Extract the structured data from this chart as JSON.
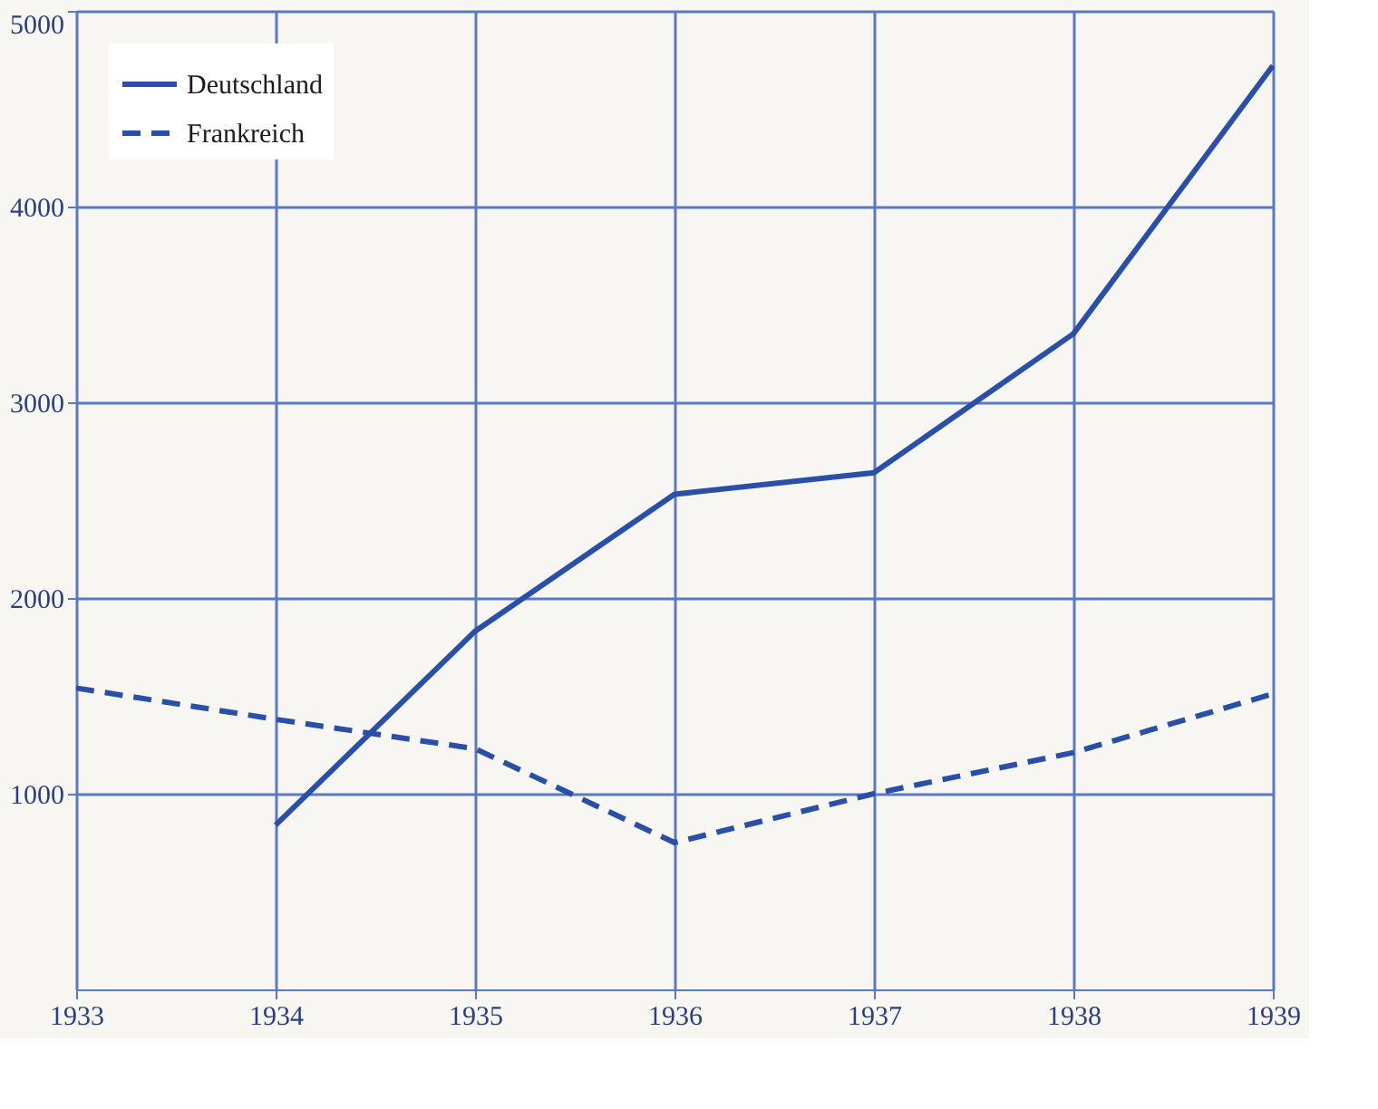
{
  "chart_data": {
    "type": "line",
    "x": [
      1933,
      1934,
      1935,
      1936,
      1937,
      1938,
      1939
    ],
    "series": [
      {
        "name": "Deutschland",
        "color": "#2a4fa8",
        "line_style": "solid",
        "values": [
          null,
          840,
          1830,
          2530,
          2640,
          3350,
          4720
        ]
      },
      {
        "name": "Frankreich",
        "color": "#2a4fa8",
        "line_style": "dashed",
        "values": [
          1540,
          1380,
          1230,
          750,
          1000,
          1210,
          1510
        ]
      }
    ],
    "xlim": [
      1933,
      1939
    ],
    "xticks": [
      1933,
      1934,
      1935,
      1936,
      1937,
      1938,
      1939
    ],
    "ylim": [
      0,
      5000
    ],
    "yticks": [
      1000,
      2000,
      3000,
      4000,
      5000
    ],
    "grid": true,
    "legend": "top left",
    "marker": "none"
  }
}
